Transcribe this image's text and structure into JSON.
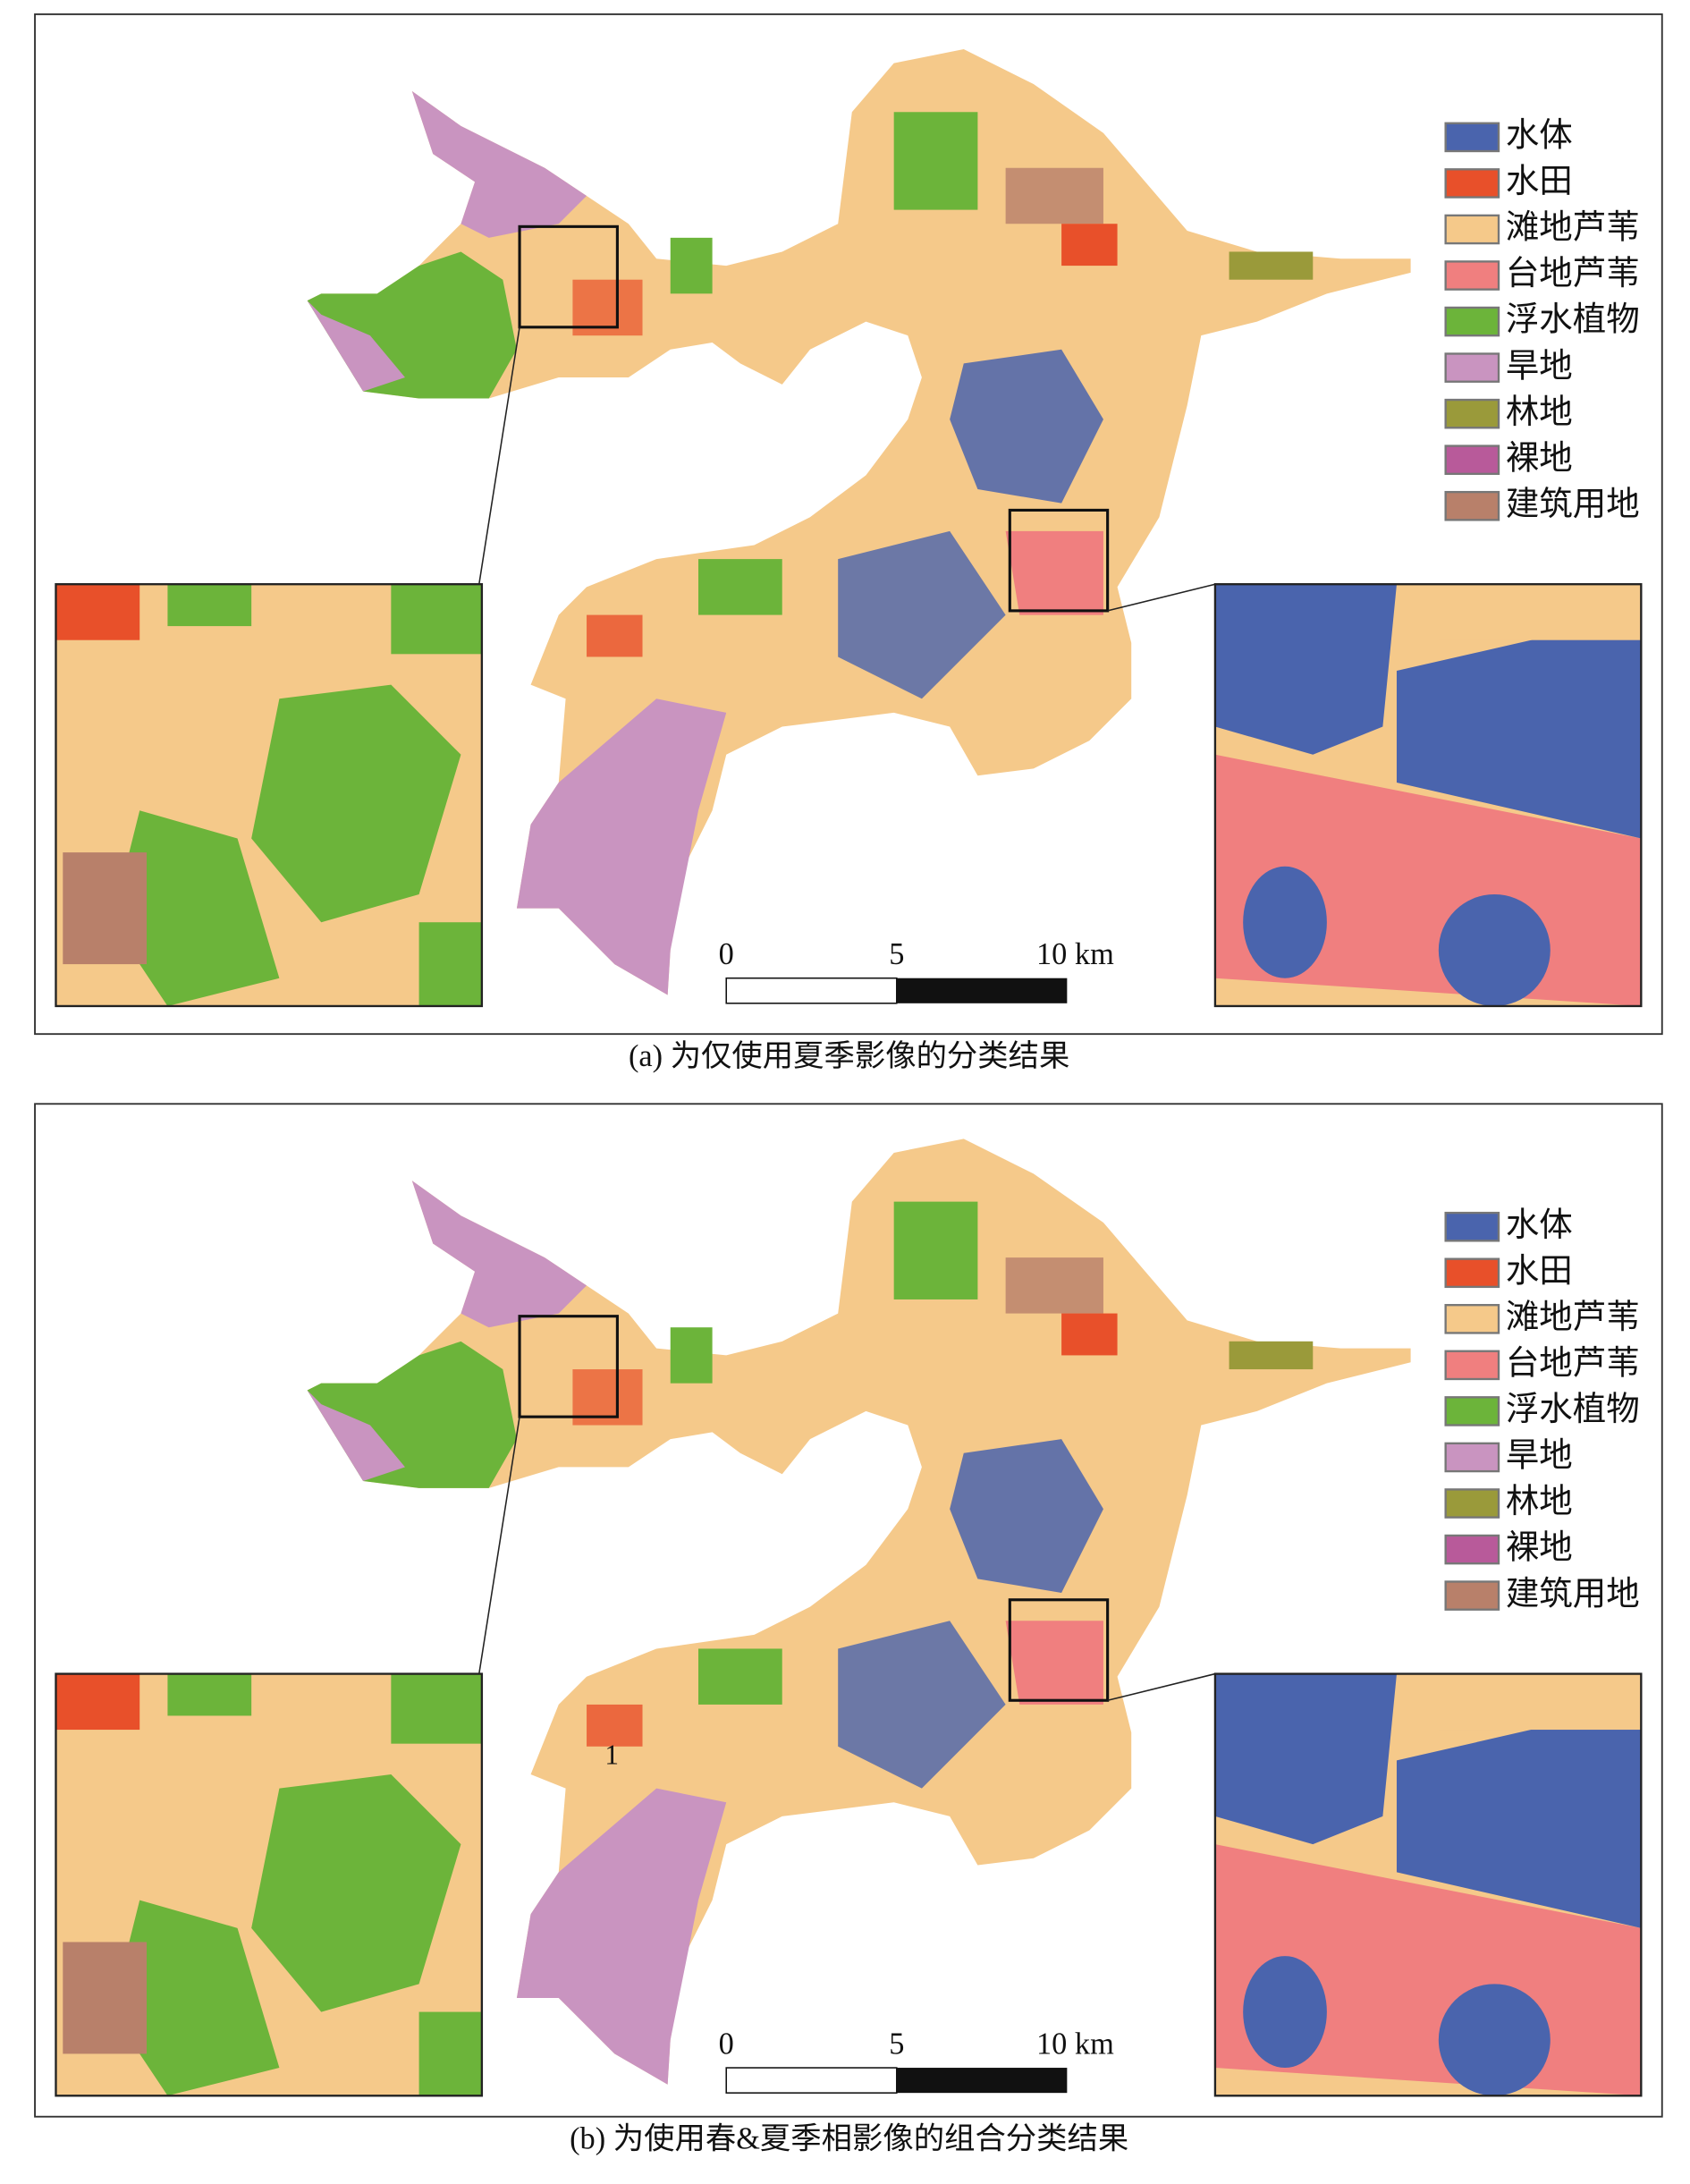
{
  "panels": [
    {
      "caption": "(a) 为仅使用夏季影像的分类结果",
      "legend": [
        {
          "label": "水体",
          "color": "#4a64ad"
        },
        {
          "label": "水田",
          "color": "#e8502a"
        },
        {
          "label": "滩地芦苇",
          "color": "#f5c98a"
        },
        {
          "label": "台地芦苇",
          "color": "#f07f7f"
        },
        {
          "label": "浮水植物",
          "color": "#6cb43a"
        },
        {
          "label": "旱地",
          "color": "#c994c0"
        },
        {
          "label": "林地",
          "color": "#9a9a3a"
        },
        {
          "label": "裸地",
          "color": "#b85a9a"
        },
        {
          "label": "建筑用地",
          "color": "#b8806a"
        }
      ],
      "scale_bar": [
        "0",
        "5",
        "10 km"
      ]
    },
    {
      "caption": "(b) 为使用春&夏季相影像的组合分类结果",
      "legend": [
        {
          "label": "水体",
          "color": "#4a64ad"
        },
        {
          "label": "水田",
          "color": "#e8502a"
        },
        {
          "label": "滩地芦苇",
          "color": "#f5c98a"
        },
        {
          "label": "台地芦苇",
          "color": "#f07f7f"
        },
        {
          "label": "浮水植物",
          "color": "#6cb43a"
        },
        {
          "label": "旱地",
          "color": "#c994c0"
        },
        {
          "label": "林地",
          "color": "#9a9a3a"
        },
        {
          "label": "裸地",
          "color": "#b85a9a"
        },
        {
          "label": "建筑用地",
          "color": "#b8806a"
        }
      ],
      "scale_bar": [
        "0",
        "5",
        "10 km"
      ],
      "annotation": "1"
    }
  ]
}
